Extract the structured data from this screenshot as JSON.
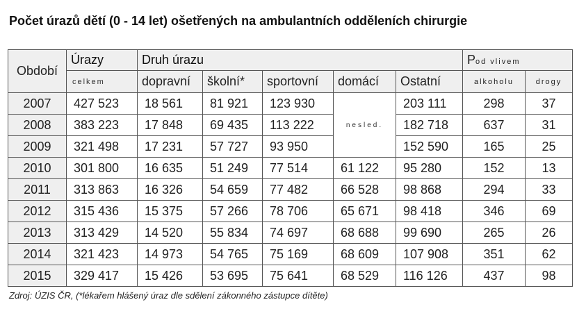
{
  "title": "Počet úrazů dětí (0 - 14 let) ošetřených na ambulantních odděleních chirurgie",
  "headers": {
    "obdobi": "Období",
    "urazy": "Úrazy",
    "celkem": "celkem",
    "druh_urazu": "Druh úrazu",
    "dopravni": "dopravní",
    "skolni": "školní*",
    "sportovni": "sportovní",
    "domaci": "domácí",
    "ostatni": "Ostatní",
    "pod_vlivem_p": "P",
    "pod_vlivem_rest": "od vlivem",
    "alkoholu": "alkoholu",
    "drogy": "drogy"
  },
  "nesled": "nesled.",
  "rows": [
    {
      "year": "2007",
      "celkem": "427 523",
      "dopravni": "18 561",
      "skolni": "81 921",
      "sportovni": "123 930",
      "domaci": "",
      "ostatni": "203 111",
      "alkohol": "298",
      "drogy": "37"
    },
    {
      "year": "2008",
      "celkem": "383 223",
      "dopravni": "17 848",
      "skolni": "69 435",
      "sportovni": "113 222",
      "domaci": "",
      "ostatni": "182 718",
      "alkohol": "637",
      "drogy": "31"
    },
    {
      "year": "2009",
      "celkem": "321 498",
      "dopravni": "17 231",
      "skolni": "57 727",
      "sportovni": "93 950",
      "domaci": "",
      "ostatni": "152 590",
      "alkohol": "165",
      "drogy": "25"
    },
    {
      "year": "2010",
      "celkem": "301 800",
      "dopravni": "16 635",
      "skolni": "51 249",
      "sportovni": "77 514",
      "domaci": "61 122",
      "ostatni": "95 280",
      "alkohol": "152",
      "drogy": "13"
    },
    {
      "year": "2011",
      "celkem": "313 863",
      "dopravni": "16 326",
      "skolni": "54 659",
      "sportovni": "77 482",
      "domaci": "66 528",
      "ostatni": "98 868",
      "alkohol": "294",
      "drogy": "33"
    },
    {
      "year": "2012",
      "celkem": "315 436",
      "dopravni": "15 375",
      "skolni": "57 266",
      "sportovni": "78 706",
      "domaci": "65 671",
      "ostatni": "98 418",
      "alkohol": "346",
      "drogy": "69"
    },
    {
      "year": "2013",
      "celkem": "313 429",
      "dopravni": "14 520",
      "skolni": "55 834",
      "sportovni": "74 697",
      "domaci": "68 688",
      "ostatni": "99 690",
      "alkohol": "265",
      "drogy": "26"
    },
    {
      "year": "2014",
      "celkem": "321 423",
      "dopravni": "14 973",
      "skolni": "54 765",
      "sportovni": "75 169",
      "domaci": "68 609",
      "ostatni": "107 908",
      "alkohol": "351",
      "drogy": "62"
    },
    {
      "year": "2015",
      "celkem": "329 417",
      "dopravni": "15 426",
      "skolni": "53 695",
      "sportovni": "75 641",
      "domaci": "68 529",
      "ostatni": "116 126",
      "alkohol": "437",
      "drogy": "98"
    }
  ],
  "source": "Zdroj: ÚZIS ČR, (*lékařem hlášený úraz dle sdělení zákonného zástupce dítěte)"
}
